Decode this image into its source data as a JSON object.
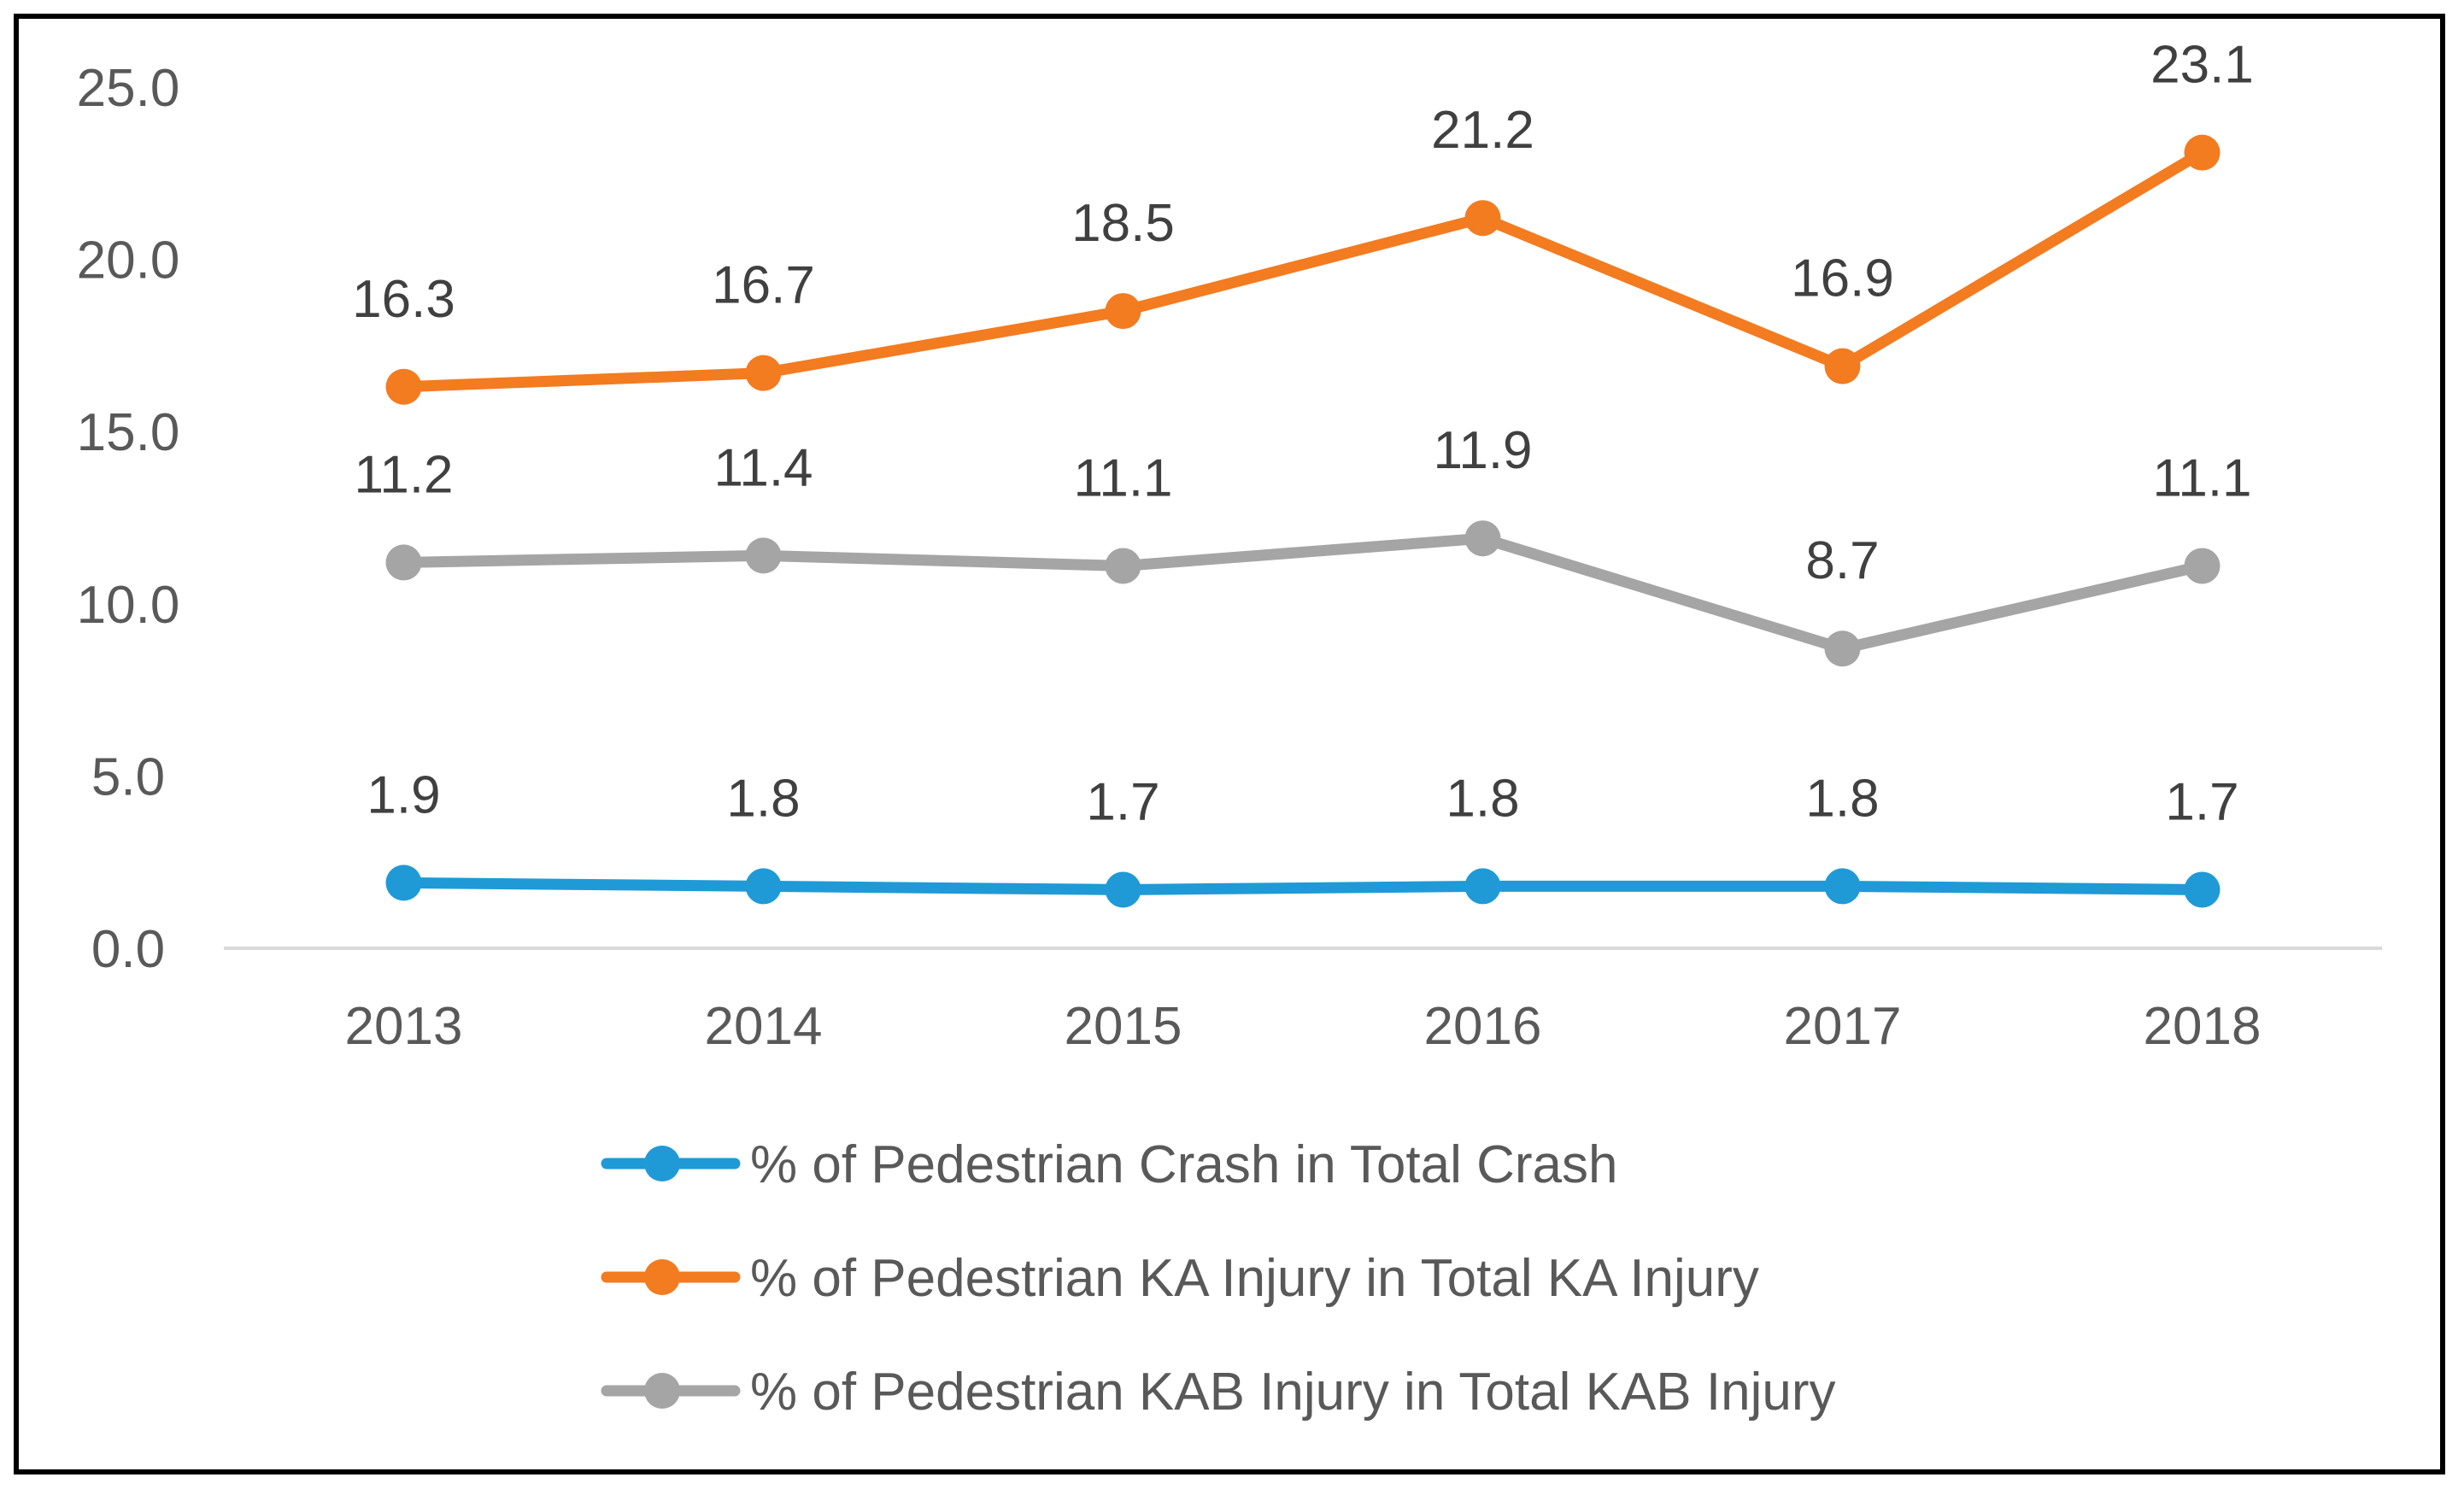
{
  "chart_data": {
    "type": "line",
    "title": "",
    "xlabel": "",
    "ylabel": "",
    "categories": [
      "2013",
      "2014",
      "2015",
      "2016",
      "2017",
      "2018"
    ],
    "ylim": [
      0,
      25
    ],
    "yticks": [
      0,
      5,
      10,
      15,
      20,
      25
    ],
    "ytick_labels": [
      "0.0",
      "5.0",
      "10.0",
      "15.0",
      "20.0",
      "25.0"
    ],
    "grid": false,
    "legend_position": "bottom",
    "series": [
      {
        "name": "% of Pedestrian Crash in Total Crash",
        "color": "#1f9ad6",
        "values": [
          1.9,
          1.8,
          1.7,
          1.8,
          1.8,
          1.7
        ],
        "labels": [
          "1.9",
          "1.8",
          "1.7",
          "1.8",
          "1.8",
          "1.7"
        ]
      },
      {
        "name": "% of Pedestrian KA Injury in Total KA Injury",
        "color": "#f37b20",
        "values": [
          16.3,
          16.7,
          18.5,
          21.2,
          16.9,
          23.1
        ],
        "labels": [
          "16.3",
          "16.7",
          "18.5",
          "21.2",
          "16.9",
          "23.1"
        ]
      },
      {
        "name": "% of Pedestrian KAB Injury in Total KAB Injury",
        "color": "#a5a5a5",
        "values": [
          11.2,
          11.4,
          11.1,
          11.9,
          8.7,
          11.1
        ],
        "labels": [
          "11.2",
          "11.4",
          "11.1",
          "11.9",
          "8.7",
          "11.1"
        ]
      }
    ]
  }
}
